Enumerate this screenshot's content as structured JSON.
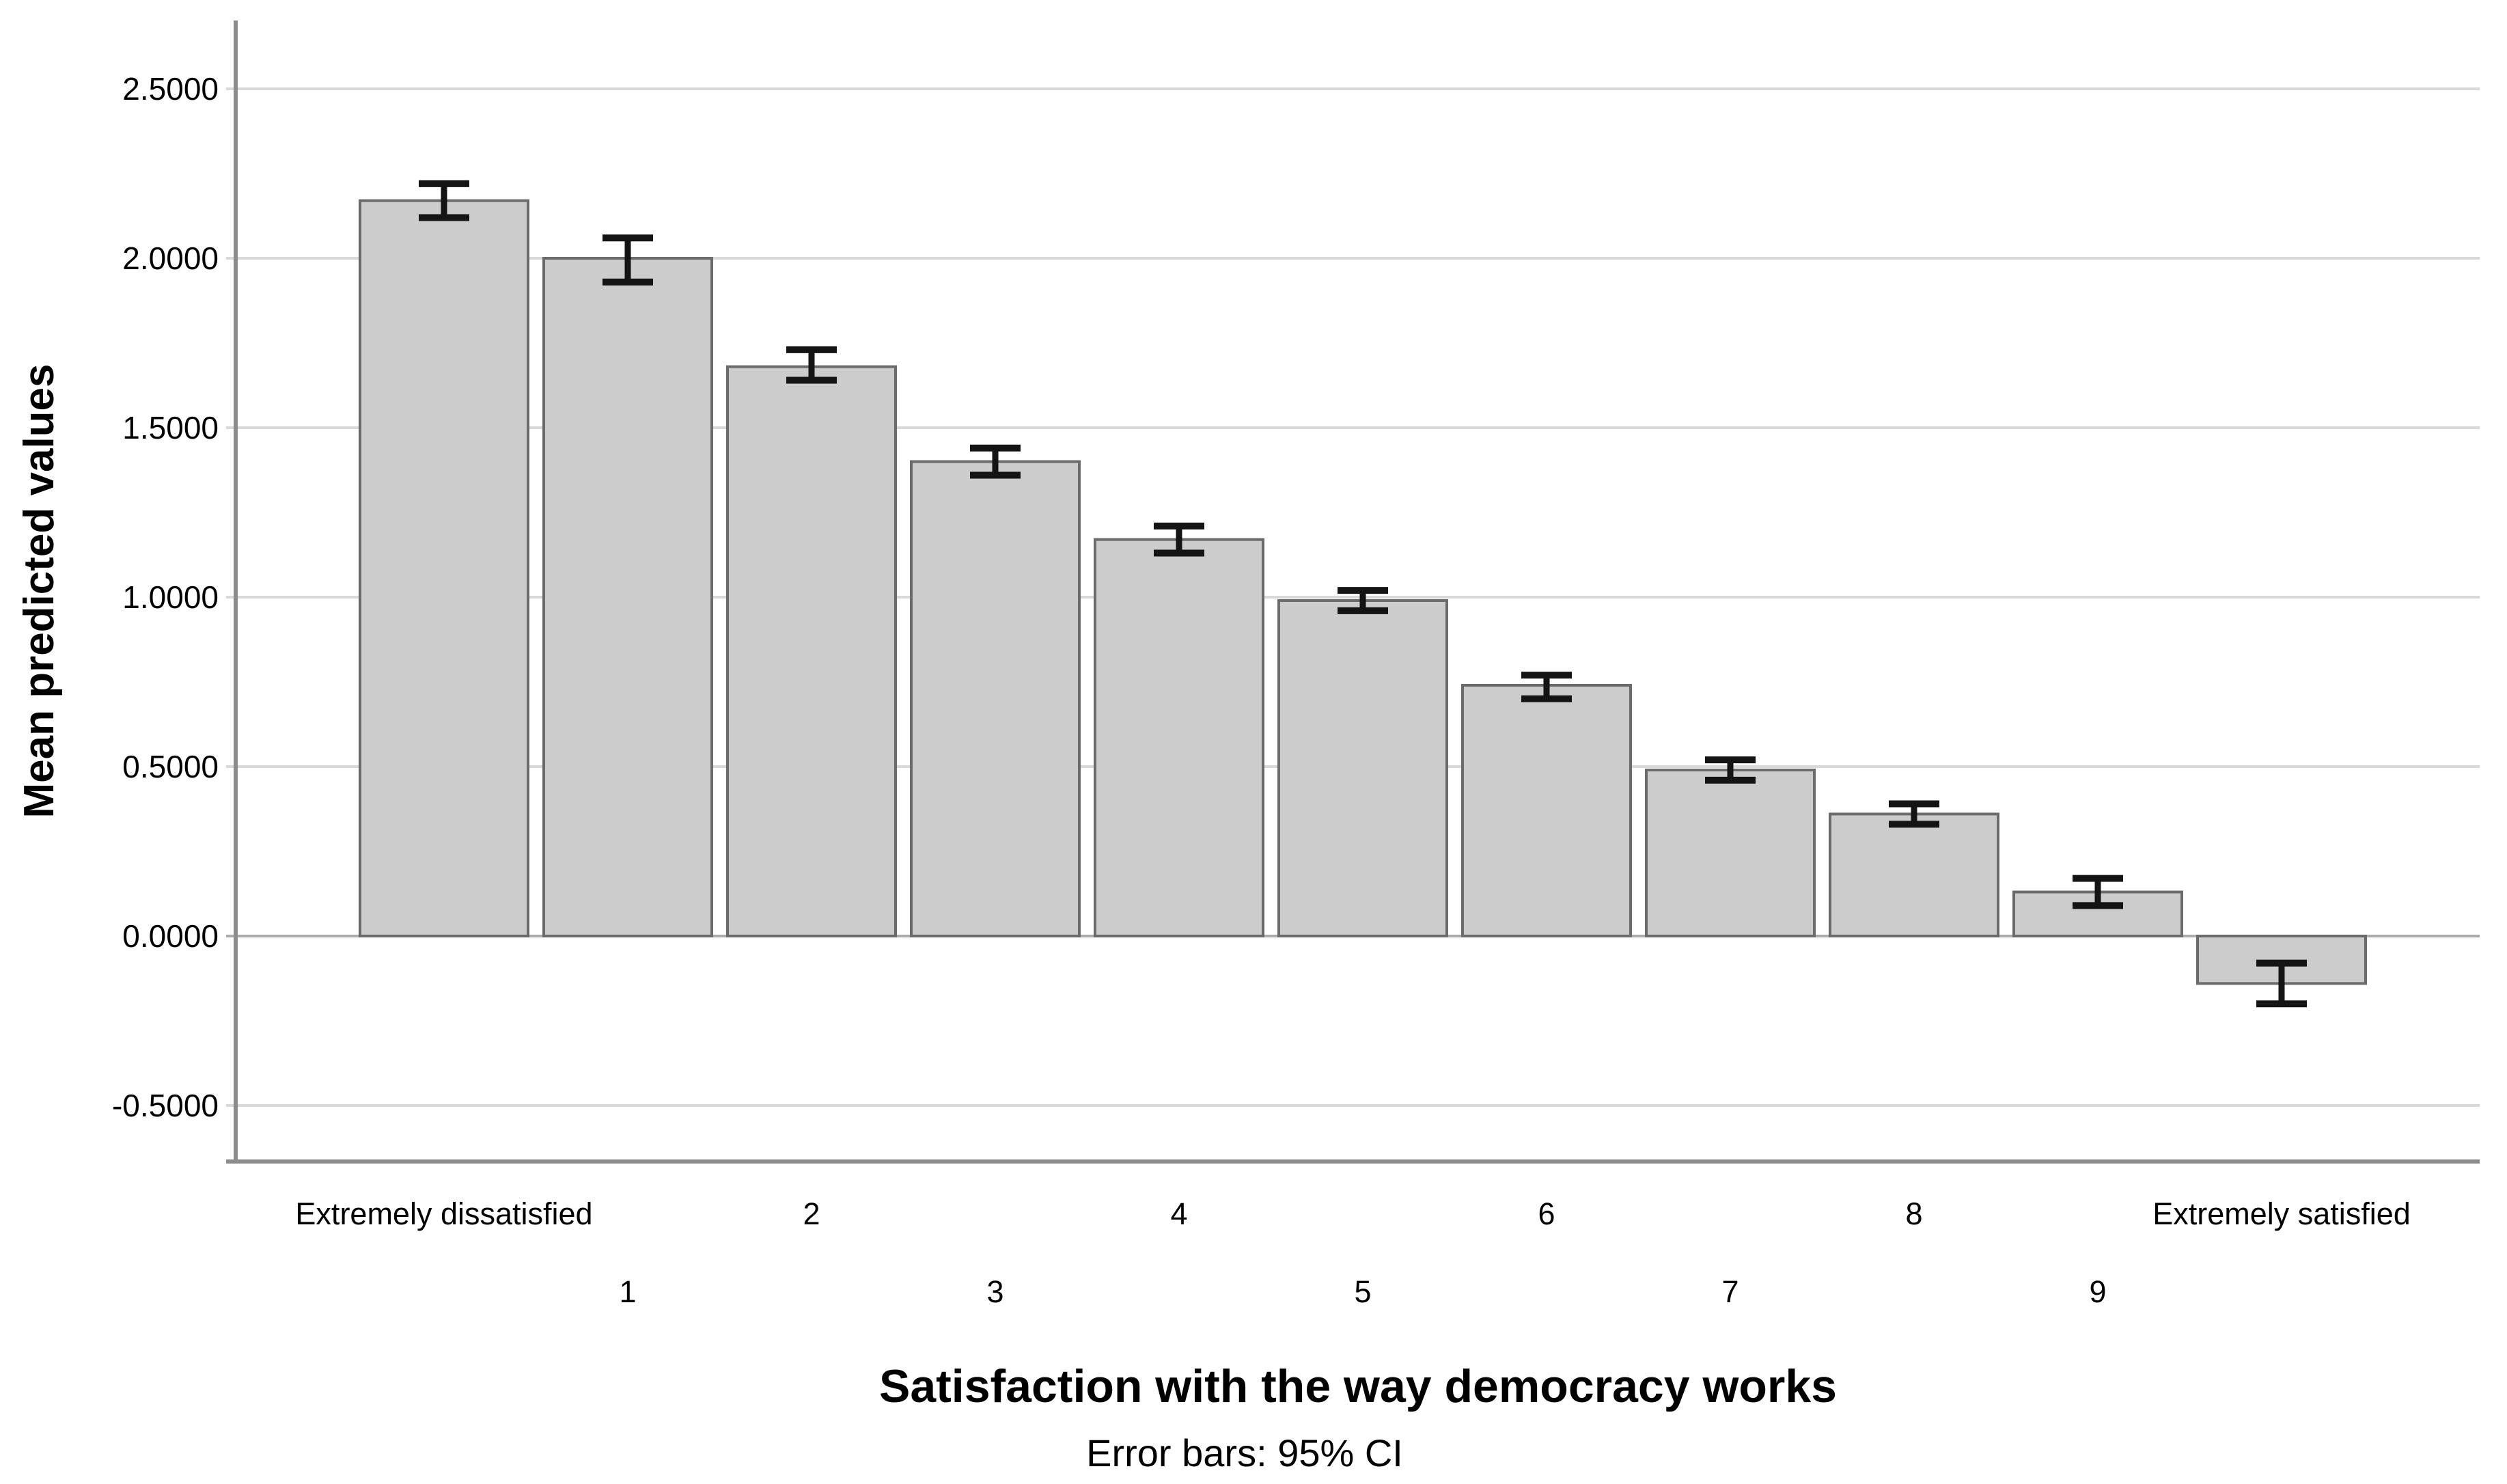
{
  "page": {
    "background": "#ffffff"
  },
  "chart_data": {
    "type": "bar",
    "title": "",
    "xlabel": "Satisfaction with the way democracy works",
    "ylabel": "Mean predicted values",
    "footnote": "Error bars: 95% CI",
    "categories": [
      "Extremely dissatisfied",
      "1",
      "2",
      "3",
      "4",
      "5",
      "6",
      "7",
      "8",
      "9",
      "Extremely satisfied"
    ],
    "label_row": [
      1,
      2,
      1,
      2,
      1,
      2,
      1,
      2,
      1,
      2,
      1
    ],
    "values": [
      2.17,
      2.0,
      1.68,
      1.4,
      1.17,
      0.99,
      0.74,
      0.49,
      0.36,
      0.13,
      -0.14
    ],
    "ci_low": [
      2.12,
      1.93,
      1.64,
      1.36,
      1.13,
      0.96,
      0.7,
      0.46,
      0.33,
      0.09,
      -0.2
    ],
    "ci_high": [
      2.22,
      2.06,
      1.73,
      1.44,
      1.21,
      1.02,
      0.77,
      0.52,
      0.39,
      0.17,
      -0.08
    ],
    "y_ticks": [
      {
        "value": 2.5,
        "label": "2.5000"
      },
      {
        "value": 2.0,
        "label": "2.0000"
      },
      {
        "value": 1.5,
        "label": "1.5000"
      },
      {
        "value": 1.0,
        "label": "1.0000"
      },
      {
        "value": 0.5,
        "label": "0.5000"
      },
      {
        "value": 0.0,
        "label": "0.0000"
      },
      {
        "value": -0.5,
        "label": "-0.5000"
      }
    ],
    "ylim": [
      -0.67,
      2.7
    ],
    "grid": true,
    "legend": "none",
    "error_bars": "95% CI",
    "colors": {
      "bar_fill": "#cccccc",
      "bar_border": "#6b6b6b",
      "error": "#141414",
      "grid": "#d9d9d9",
      "grid_zero": "#ababab",
      "axis": "#8c8c8c",
      "text": "#000000"
    }
  }
}
